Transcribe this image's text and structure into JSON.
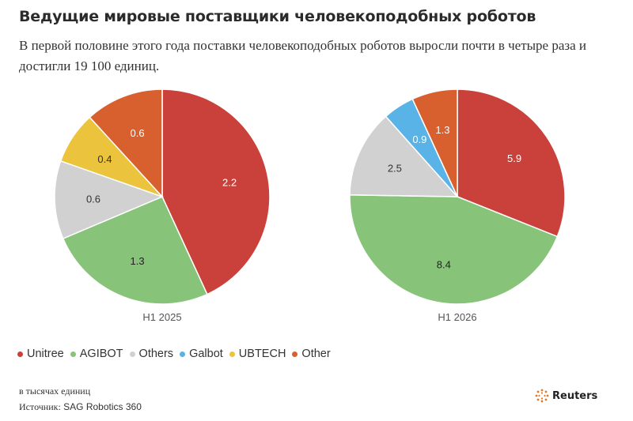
{
  "header": {
    "title": "Ведущие мировые поставщики человекоподобных роботов",
    "subtitle": "В первой половине этого года поставки человекоподобных роботов выросли почти в четыре раза и достигли 19 100 единиц."
  },
  "colors": {
    "Unitree": "#c9413a",
    "AGIBOT": "#88c37a",
    "Others": "#d1d1d1",
    "Galbot": "#5ab3e6",
    "UBTECH": "#ebc33c",
    "Other": "#d8602f"
  },
  "chart_data": [
    {
      "type": "pie",
      "label": "H1 2025",
      "slices": [
        {
          "name": "Unitree",
          "value": 2.2
        },
        {
          "name": "AGIBOT",
          "value": 1.3
        },
        {
          "name": "Others",
          "value": 0.6
        },
        {
          "name": "UBTECH",
          "value": 0.4
        },
        {
          "name": "Other",
          "value": 0.6
        }
      ]
    },
    {
      "type": "pie",
      "label": "H1 2026",
      "slices": [
        {
          "name": "Unitree",
          "value": 5.9
        },
        {
          "name": "AGIBOT",
          "value": 8.4
        },
        {
          "name": "Others",
          "value": 2.5
        },
        {
          "name": "Galbot",
          "value": 0.9
        },
        {
          "name": "Other",
          "value": 1.3
        }
      ]
    }
  ],
  "legend": [
    {
      "name": "Unitree"
    },
    {
      "name": "AGIBOT"
    },
    {
      "name": "Others"
    },
    {
      "name": "Galbot"
    },
    {
      "name": "UBTECH"
    },
    {
      "name": "Other"
    }
  ],
  "footer": {
    "units": "в тысячах единиц",
    "source_label": "Источник:",
    "source_name": "SAG Robotics 360",
    "logo_text": "Reuters"
  }
}
